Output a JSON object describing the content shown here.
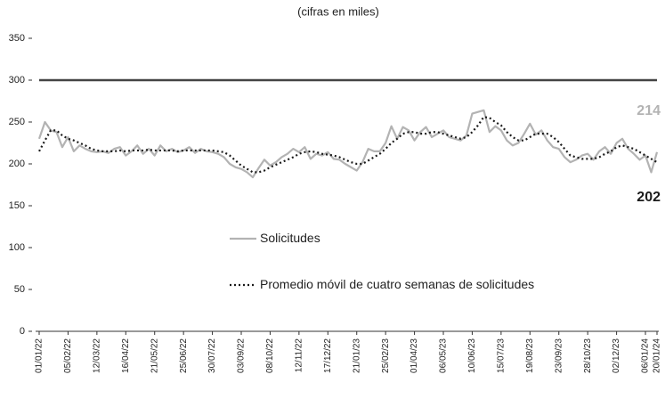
{
  "chart_data": {
    "type": "line",
    "subtitle": "(cifras en miles)",
    "categories": [
      "01/01/22",
      null,
      null,
      null,
      null,
      "05/02/22",
      null,
      null,
      null,
      null,
      "12/03/22",
      null,
      null,
      null,
      null,
      "16/04/22",
      null,
      null,
      null,
      null,
      "21/05/22",
      null,
      null,
      null,
      null,
      "25/06/22",
      null,
      null,
      null,
      null,
      "30/07/22",
      null,
      null,
      null,
      null,
      "03/09/22",
      null,
      null,
      null,
      null,
      "08/10/22",
      null,
      null,
      null,
      null,
      "12/11/22",
      null,
      null,
      null,
      null,
      "17/12/22",
      null,
      null,
      null,
      null,
      "21/01/23",
      null,
      null,
      null,
      null,
      "25/02/23",
      null,
      null,
      null,
      null,
      "01/04/23",
      null,
      null,
      null,
      null,
      "06/05/23",
      null,
      null,
      null,
      null,
      "10/06/23",
      null,
      null,
      null,
      null,
      "15/07/23",
      null,
      null,
      null,
      null,
      "19/08/23",
      null,
      null,
      null,
      null,
      "23/09/23",
      null,
      null,
      null,
      null,
      "28/10/23",
      null,
      null,
      null,
      null,
      "02/12/23",
      null,
      null,
      null,
      null,
      "06/01/24",
      null,
      "20/01/24"
    ],
    "series": [
      {
        "name": "Solicitudes",
        "color": "#b3b3b3",
        "dash": false,
        "values": [
          230,
          250,
          240,
          238,
          220,
          232,
          215,
          222,
          218,
          215,
          214,
          215,
          213,
          218,
          220,
          210,
          215,
          222,
          212,
          218,
          210,
          222,
          215,
          218,
          214,
          216,
          220,
          213,
          218,
          215,
          214,
          212,
          208,
          200,
          196,
          194,
          190,
          184,
          195,
          205,
          198,
          202,
          208,
          212,
          218,
          214,
          220,
          206,
          212,
          210,
          214,
          206,
          205,
          200,
          196,
          192,
          202,
          218,
          215,
          215,
          225,
          245,
          230,
          244,
          240,
          228,
          238,
          244,
          232,
          236,
          240,
          232,
          230,
          228,
          234,
          260,
          262,
          264,
          238,
          245,
          240,
          228,
          222,
          225,
          236,
          248,
          235,
          240,
          228,
          220,
          218,
          208,
          202,
          205,
          210,
          212,
          205,
          215,
          220,
          212,
          225,
          230,
          218,
          212,
          205,
          210,
          190,
          214
        ]
      },
      {
        "name": "Promedio móvil de cuatro semanas de solicitudes",
        "color": "#1a1a1a",
        "dash": true,
        "values": [
          215,
          228,
          240,
          240,
          234,
          230,
          228,
          225,
          222,
          218,
          216,
          215,
          215,
          215,
          216,
          215,
          216,
          216,
          216,
          217,
          216,
          216,
          216,
          216,
          215,
          216,
          216,
          216,
          216,
          216,
          216,
          215,
          214,
          210,
          204,
          198,
          194,
          190,
          190,
          192,
          196,
          199,
          202,
          205,
          208,
          212,
          214,
          215,
          214,
          212,
          211,
          210,
          208,
          205,
          202,
          200,
          200,
          204,
          208,
          212,
          218,
          225,
          230,
          236,
          238,
          238,
          236,
          236,
          238,
          238,
          236,
          234,
          232,
          230,
          232,
          238,
          246,
          256,
          255,
          250,
          246,
          238,
          232,
          228,
          228,
          232,
          236,
          236,
          236,
          232,
          226,
          218,
          210,
          208,
          206,
          206,
          206,
          208,
          212,
          215,
          220,
          222,
          220,
          218,
          214,
          210,
          206,
          202
        ]
      }
    ],
    "hline": 300,
    "hline_color": "#444444",
    "ylim": [
      0,
      350
    ],
    "yticks": [
      0,
      50,
      100,
      150,
      200,
      250,
      300,
      350
    ],
    "grid": false
  }
}
